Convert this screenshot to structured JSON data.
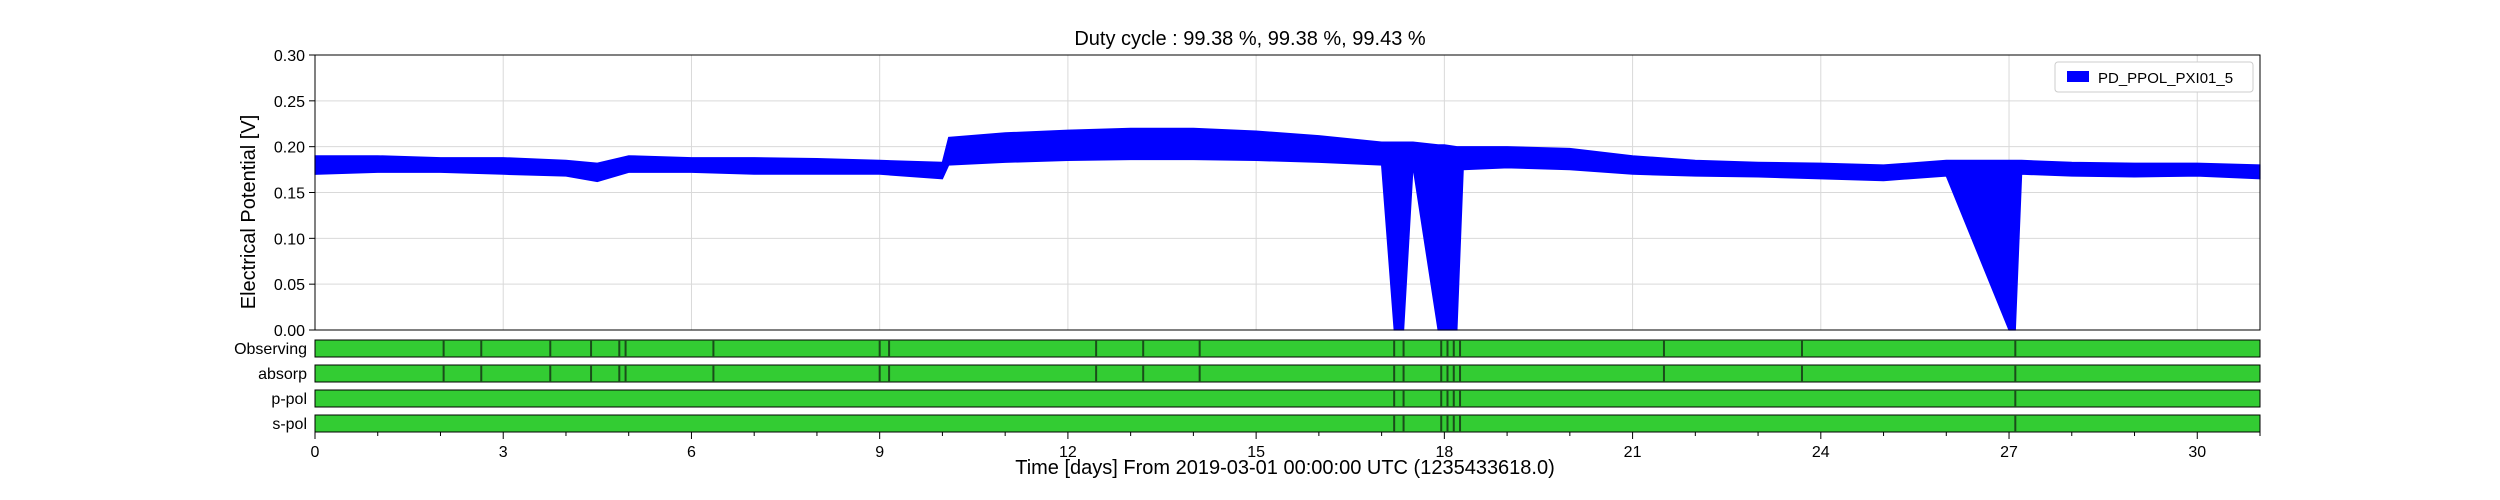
{
  "chart_data": {
    "type": "line",
    "title": "Duty cycle : 99.38 %, 99.38 %, 99.43 %",
    "xlabel": "Time [days] From 2019-03-01 00:00:00 UTC (1235433618.0)",
    "ylabel": "Electrical Potential [V]",
    "xlim": [
      0,
      31
    ],
    "ylim": [
      0,
      0.3
    ],
    "x_ticks": [
      0,
      3,
      6,
      9,
      12,
      15,
      18,
      21,
      24,
      27,
      30
    ],
    "y_ticks": [
      "0.00",
      "0.05",
      "0.10",
      "0.15",
      "0.20",
      "0.25",
      "0.30"
    ],
    "grid": true,
    "legend_position": "top-right",
    "series": [
      {
        "name": "PD_PPOL_PXI01_5",
        "color": "#0000ff",
        "x": [
          0,
          1,
          2,
          3,
          4,
          4.5,
          5,
          6,
          7,
          8,
          9,
          10,
          10.1,
          11,
          12,
          13,
          14,
          15,
          16,
          17,
          17.2,
          17.35,
          17.5,
          17.9,
          18.0,
          18.2,
          18.3,
          19,
          20,
          21,
          22,
          23,
          24,
          25,
          26,
          27,
          27.1,
          27.2,
          28,
          29,
          30,
          31
        ],
        "lower": [
          0.17,
          0.172,
          0.172,
          0.17,
          0.168,
          0.162,
          0.172,
          0.172,
          0.17,
          0.17,
          0.17,
          0.165,
          0.18,
          0.183,
          0.185,
          0.186,
          0.186,
          0.185,
          0.183,
          0.18,
          0.0,
          0.0,
          0.178,
          0.0,
          0.0,
          0.0,
          0.175,
          0.177,
          0.175,
          0.17,
          0.168,
          0.167,
          0.165,
          0.163,
          0.168,
          0.0,
          0.0,
          0.17,
          0.168,
          0.167,
          0.168,
          0.165
        ],
        "upper": [
          0.19,
          0.19,
          0.188,
          0.188,
          0.185,
          0.182,
          0.19,
          0.188,
          0.188,
          0.187,
          0.185,
          0.183,
          0.21,
          0.215,
          0.218,
          0.22,
          0.22,
          0.217,
          0.212,
          0.205,
          0.205,
          0.205,
          0.205,
          0.202,
          0.202,
          0.2,
          0.2,
          0.2,
          0.198,
          0.19,
          0.185,
          0.183,
          0.182,
          0.18,
          0.185,
          0.185,
          0.185,
          0.185,
          0.183,
          0.182,
          0.182,
          0.18
        ]
      }
    ],
    "state_rows": [
      {
        "name": "Observing",
        "color": "#33cc33",
        "gaps": [
          2.05,
          2.65,
          3.75,
          4.4,
          4.85,
          4.95,
          6.35,
          9.0,
          9.15,
          12.45,
          13.2,
          14.1,
          17.2,
          17.35,
          17.95,
          18.05,
          18.15,
          18.25,
          21.5,
          23.7,
          27.1
        ]
      },
      {
        "name": "absorp",
        "color": "#33cc33",
        "gaps": [
          2.05,
          2.65,
          3.75,
          4.4,
          4.85,
          4.95,
          6.35,
          9.0,
          9.15,
          12.45,
          13.2,
          14.1,
          17.2,
          17.35,
          17.95,
          18.05,
          18.15,
          18.25,
          21.5,
          23.7,
          27.1
        ]
      },
      {
        "name": "p-pol",
        "color": "#33cc33",
        "gaps": [
          17.2,
          17.35,
          17.95,
          18.05,
          18.15,
          18.25,
          27.1
        ]
      },
      {
        "name": "s-pol",
        "color": "#33cc33",
        "gaps": [
          17.2,
          17.35,
          17.95,
          18.05,
          18.15,
          18.25,
          27.1
        ]
      }
    ]
  }
}
